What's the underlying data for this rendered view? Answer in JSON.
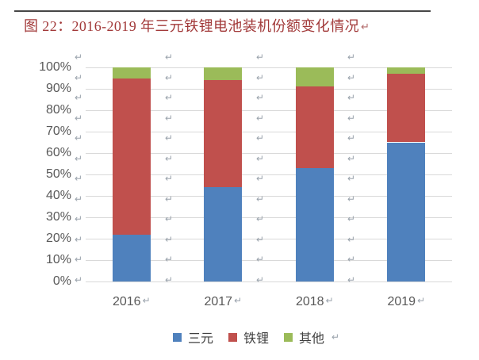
{
  "title": {
    "text": "图 22：2016-2019 年三元铁锂电池装机份额变化情况"
  },
  "marks": {
    "pilcrow": "↵"
  },
  "colors": {
    "background": "#ffffff",
    "title": "#a23a3a",
    "title_pilcrow": "#b26a6a",
    "rule": "#474747",
    "grid": "#d9d9d9",
    "axis_text": "#595959",
    "pilcrow": "#9aa3ac",
    "legend_text": "#404040"
  },
  "chart_data": {
    "type": "bar",
    "stacked": true,
    "title": "图 22：2016-2019 年三元铁锂电池装机份额变化情况",
    "categories": [
      "2016",
      "2017",
      "2018",
      "2019"
    ],
    "series": [
      {
        "name": "三元",
        "key": "ternary",
        "color": "#4f81bd",
        "values": [
          22,
          44,
          53,
          65
        ]
      },
      {
        "name": "铁锂",
        "key": "lfp",
        "color": "#c0504d",
        "values": [
          73,
          50,
          38,
          32
        ]
      },
      {
        "name": "其他",
        "key": "other",
        "color": "#9bbb59",
        "values": [
          5,
          6,
          9,
          3
        ]
      }
    ],
    "unit": "percent",
    "ylim": [
      0,
      100
    ],
    "ytick_step": 10,
    "yticklabels": [
      "100%",
      "90%",
      "80%",
      "70%",
      "60%",
      "50%",
      "40%",
      "30%",
      "20%",
      "10%",
      "0%"
    ],
    "xlabel": "",
    "ylabel": "",
    "grid": true,
    "legend_position": "bottom"
  }
}
